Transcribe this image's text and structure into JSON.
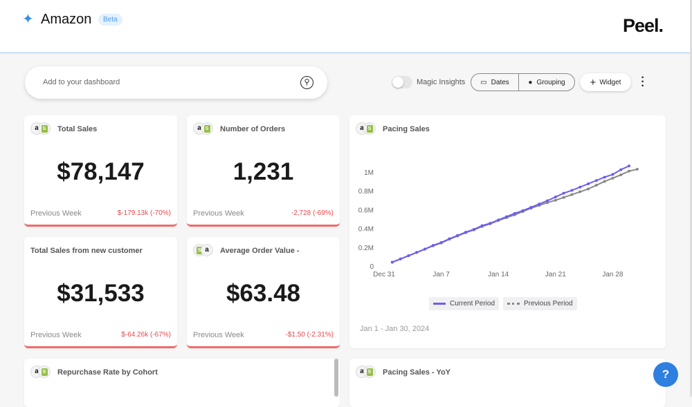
{
  "header": {
    "title": "Amazon",
    "badge": "Beta",
    "logo": "Peel."
  },
  "search": {
    "placeholder": "Add to your dashboard"
  },
  "toolbar": {
    "magic_insights": "Magic Insights",
    "magic_insights_on": false,
    "dates": "Dates",
    "grouping": "Grouping",
    "widget": "Widget"
  },
  "kpis": [
    {
      "title": "Total Sales",
      "value": "$78,147",
      "compare": "Previous Week",
      "delta": "$-179.13k (-70%)",
      "sources": [
        "amazon",
        "shopify"
      ]
    },
    {
      "title": "Number of Orders",
      "value": "1,231",
      "compare": "Previous Week",
      "delta": "-2,728 (-69%)",
      "sources": [
        "amazon",
        "shopify"
      ]
    },
    {
      "title": "Total Sales from new customer",
      "value": "$31,533",
      "compare": "Previous Week",
      "delta": "$-64.26k (-67%)",
      "sources": []
    },
    {
      "title": "Average Order Value -",
      "value": "$63.48",
      "compare": "Previous Week",
      "delta": "-$1.50 (-2.31%)",
      "sources": [
        "shopify",
        "amazon"
      ]
    }
  ],
  "pacing": {
    "title": "Pacing Sales",
    "range": "Jan 1 - Jan 30, 2024"
  },
  "bottom": {
    "repurchase": "Repurchase Rate by Cohort",
    "yoy": "Pacing Sales - YoY"
  },
  "help": "?",
  "chart_data": {
    "type": "line",
    "title": "Pacing Sales",
    "x_ticks": [
      "Dec 31",
      "Jan 7",
      "Jan 14",
      "Jan 21",
      "Jan 28"
    ],
    "y_ticks": [
      "0",
      "0.2M",
      "0.4M",
      "0.6M",
      "0.8M",
      "1M"
    ],
    "ylim": [
      0,
      1100000
    ],
    "x_start": "Jan 1",
    "legend": "bottom",
    "series": [
      {
        "name": "Current Period",
        "color": "#6a5cf0",
        "style": "solid",
        "values": [
          0.04,
          0.075,
          0.11,
          0.145,
          0.18,
          0.22,
          0.25,
          0.29,
          0.325,
          0.36,
          0.39,
          0.43,
          0.455,
          0.49,
          0.525,
          0.56,
          0.59,
          0.625,
          0.66,
          0.695,
          0.735,
          0.775,
          0.805,
          0.84,
          0.875,
          0.91,
          0.945,
          0.975,
          1.025,
          1.065
        ]
      },
      {
        "name": "Previous Period",
        "color": "#888888",
        "style": "dotted",
        "values": [
          0.04,
          0.075,
          0.11,
          0.145,
          0.18,
          0.215,
          0.245,
          0.285,
          0.32,
          0.355,
          0.385,
          0.42,
          0.45,
          0.485,
          0.515,
          0.545,
          0.58,
          0.615,
          0.645,
          0.675,
          0.7,
          0.73,
          0.76,
          0.79,
          0.82,
          0.86,
          0.9,
          0.935,
          0.97,
          1.01,
          1.03
        ]
      }
    ]
  }
}
